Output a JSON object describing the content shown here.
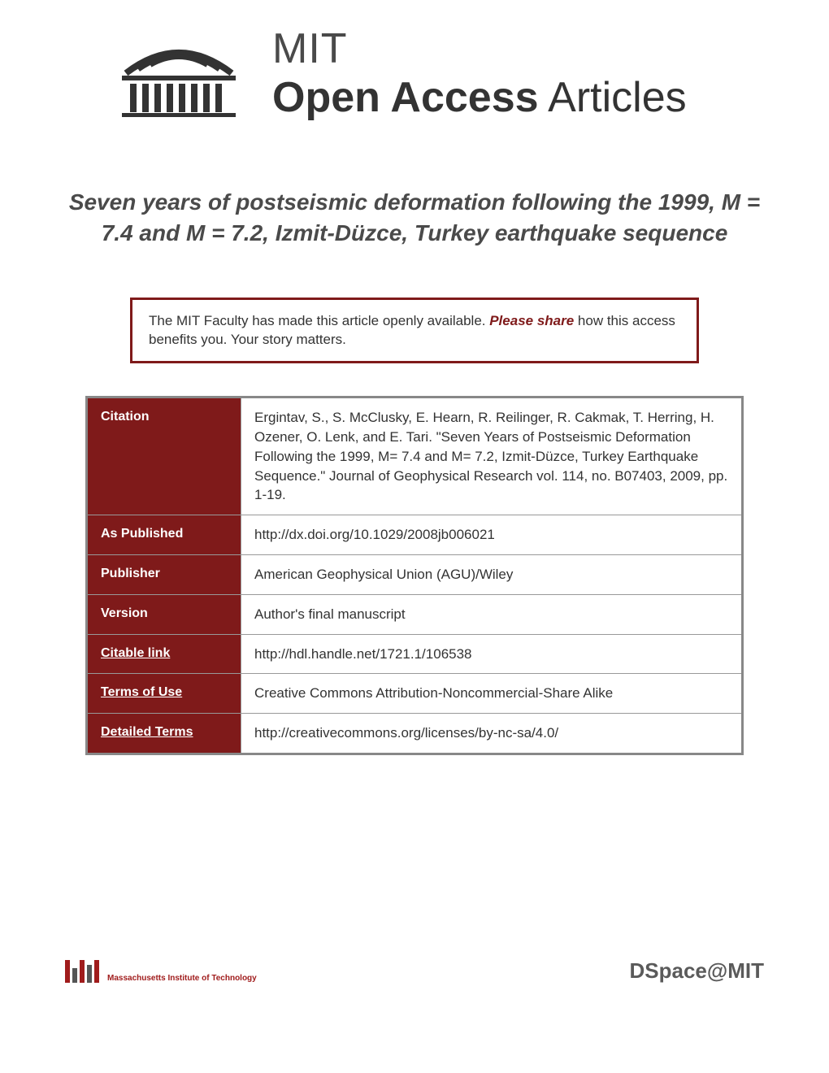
{
  "header": {
    "line1": "MIT",
    "line2_bold": "Open Access",
    "line2_light": " Articles"
  },
  "title": "Seven years of postseismic deformation following the 1999, M = 7.4 and M = 7.2, Izmit-Düzce, Turkey earthquake sequence",
  "notice": {
    "pre": "The MIT Faculty has made this article openly available. ",
    "emphasis": "Please share",
    "post": " how this access benefits you. Your story matters."
  },
  "metadata": [
    {
      "label": "Citation",
      "value": "Ergintav, S., S. McClusky, E. Hearn, R. Reilinger, R. Cakmak, T. Herring, H. Ozener, O. Lenk, and E. Tari. \"Seven Years of Postseismic Deformation Following the 1999, M= 7.4 and M= 7.2, Izmit-Düzce, Turkey Earthquake Sequence.\" Journal of Geophysical Research vol. 114, no. B07403, 2009, pp. 1-19."
    },
    {
      "label": "As Published",
      "value": "http://dx.doi.org/10.1029/2008jb006021"
    },
    {
      "label": "Publisher",
      "value": "American Geophysical Union (AGU)/Wiley"
    },
    {
      "label": "Version",
      "value": "Author's final manuscript"
    },
    {
      "label": "Citable link",
      "value": "http://hdl.handle.net/1721.1/106538",
      "link": true
    },
    {
      "label": "Terms of Use",
      "value": "Creative Commons Attribution-Noncommercial-Share Alike",
      "link": true
    },
    {
      "label": "Detailed Terms",
      "value": "http://creativecommons.org/licenses/by-nc-sa/4.0/",
      "link": true
    }
  ],
  "footer": {
    "mit_name": "Massachusetts Institute of Technology",
    "dspace": "DSpace@MIT"
  },
  "colors": {
    "accent": "#7f1a1a",
    "text": "#333333",
    "header_grey": "#4a4a4a",
    "border_grey": "#888888"
  }
}
